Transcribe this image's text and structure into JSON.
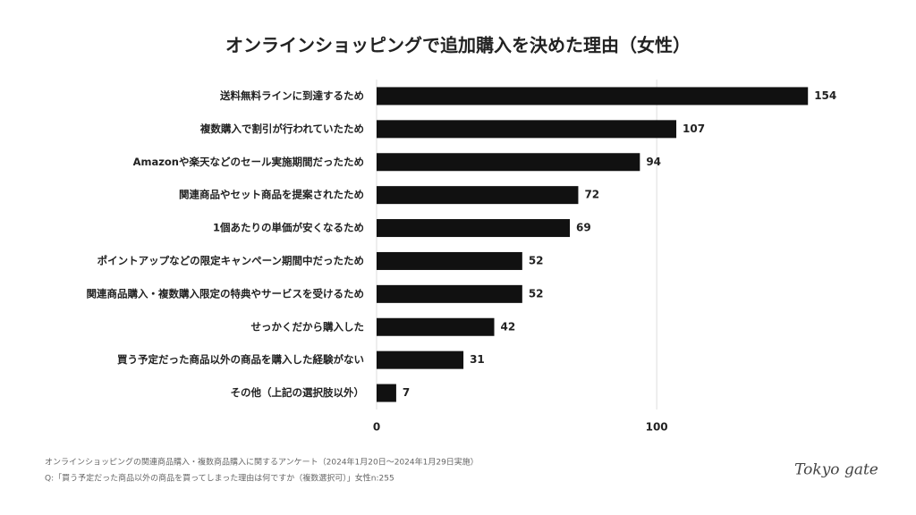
{
  "chart_data": {
    "type": "hbar",
    "title": "オンラインショッピングで追加購入を決めた理由（女性）",
    "categories": [
      "送料無料ラインに到達するため",
      "複数購入で割引が行われていたため",
      "Amazonや楽天などのセール実施期間だったため",
      "関連商品やセット商品を提案されたため",
      "1個あたりの単価が安くなるため",
      "ポイントアップなどの限定キャンペーン期間中だったため",
      "関連商品購入・複数購入限定の特典やサービスを受けるため",
      "せっかくだから購入した",
      "買う予定だった商品以外の商品を購入した経験がない",
      "その他（上記の選択肢以外）"
    ],
    "values": [
      154,
      107,
      94,
      72,
      69,
      52,
      52,
      42,
      31,
      7
    ],
    "color": "#111111",
    "xlim": [
      0,
      160
    ],
    "xticks": [
      0,
      100
    ],
    "grid": true,
    "footnotes": [
      "オンラインショッピングの関連商品購入・複数商品購入に関するアンケート（2024年1月20日〜2024年1月29日実施）",
      "Q:「買う予定だった商品以外の商品を買ってしまった理由は何ですか（複数選択可）」女性n:255"
    ],
    "logo": "Tokyo gate"
  }
}
